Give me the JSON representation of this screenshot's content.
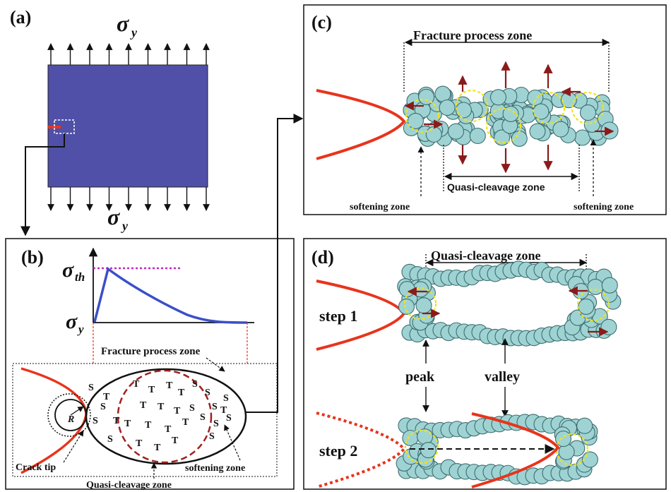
{
  "panels": {
    "a": {
      "label": "(a)",
      "sigma_top": "σ",
      "sigma_top_sub": "y",
      "sigma_bottom": "σ",
      "sigma_bottom_sub": "y",
      "plate_color": "#5050a8"
    },
    "b": {
      "label": "(b)",
      "sigma_th": "σ",
      "sigma_th_sub": "th",
      "sigma_y": "σ",
      "sigma_y_sub": "y",
      "fpz": "Fracture process zone",
      "radius": "R",
      "crack_tip": "Crack tip",
      "softening": "softening zone",
      "quasi": "Quasi-cleavage zone",
      "s_char": "S",
      "t_char": "T"
    },
    "c": {
      "label": "(c)",
      "fpz": "Fracture process zone",
      "quasi": "Quasi-cleavage zone",
      "soft_left": "softening zone",
      "soft_right": "softening zone"
    },
    "d": {
      "label": "(d)",
      "quasi": "Quasi-cleavage zone",
      "step1": "step 1",
      "step2": "step 2",
      "peak": "peak",
      "valley": "valley"
    }
  },
  "colors": {
    "crack": "#e8341c",
    "atom_fill": "#9fd3d3",
    "atom_stroke": "#3d6d70",
    "dash_yellow": "#f2e21a",
    "arrow_red": "#8b1a1a",
    "curve": "#3a4fc8",
    "magenta": "#c028c0",
    "maroon_dash": "#a02020"
  }
}
